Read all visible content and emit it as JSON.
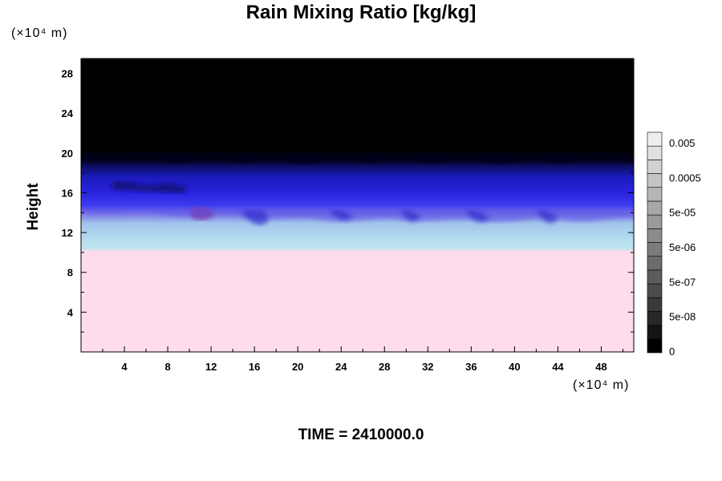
{
  "chart_data": {
    "type": "heatmap",
    "title": "Rain Mixing Ratio [kg/kg]",
    "ylabel": "Height",
    "xunit": "(×10⁴ m)",
    "yunit": "(×10⁴ m)",
    "xlim": [
      0,
      51
    ],
    "ylim": [
      0,
      29.5
    ],
    "xticks": [
      4,
      8,
      12,
      16,
      20,
      24,
      28,
      32,
      36,
      40,
      44,
      48
    ],
    "yticks": [
      4,
      8,
      12,
      16,
      20,
      24,
      28
    ],
    "colorbar": {
      "tick_labels": [
        "0.005",
        "0.0005",
        "5e-05",
        "5e-06",
        "5e-07",
        "5e-08",
        "0"
      ],
      "level_colors": [
        "#000000",
        "#141414",
        "#282828",
        "#3a3a3a",
        "#4c4c4c",
        "#5c5c5c",
        "#6c6c6c",
        "#7c7c7c",
        "#8c8c8c",
        "#9a9a9a",
        "#a8a8a8",
        "#b6b6b6",
        "#c4c4c4",
        "#d2d2d2",
        "#e0e0e0",
        "#eeeeee"
      ]
    },
    "layers": [
      {
        "region": "surface to ~10",
        "color": "#ffdcec"
      },
      {
        "region": "~10 to ~13",
        "color": "#b8e2ef"
      },
      {
        "region": "~13 to ~19",
        "color": "#2a22dd"
      },
      {
        "region": "above ~19",
        "color": "#000000"
      }
    ],
    "annotation": "TIME = 2410000.0"
  }
}
